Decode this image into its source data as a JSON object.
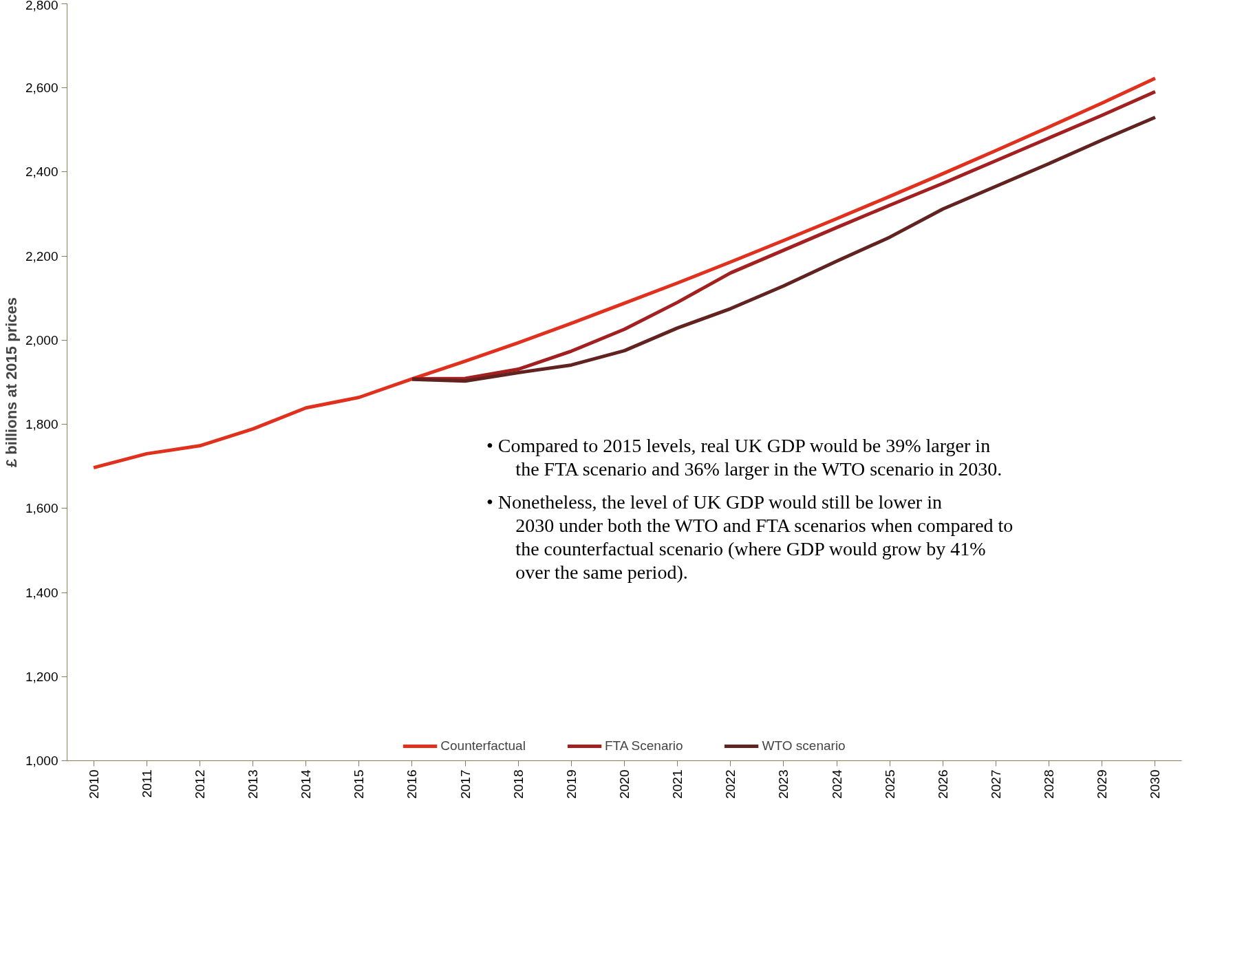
{
  "chart_data": {
    "type": "line",
    "ylabel": "£ billions at 2015 prices",
    "categories": [
      "2010",
      "2011",
      "2012",
      "2013",
      "2014",
      "2015",
      "2016",
      "2017",
      "2018",
      "2019",
      "2020",
      "2021",
      "2022",
      "2023",
      "2024",
      "2025",
      "2026",
      "2027",
      "2028",
      "2029",
      "2030"
    ],
    "series": [
      {
        "name": "Counterfactual",
        "color": "#e0301e",
        "values": [
          1697,
          1730,
          1749,
          1789,
          1839,
          1864,
          1908,
          1950,
          1994,
          2040,
          2088,
          2136,
          2186,
          2237,
          2289,
          2342,
          2396,
          2451,
          2507,
          2564,
          2623
        ]
      },
      {
        "name": "FTA Scenario",
        "color": "#a32020",
        "values": [
          null,
          null,
          null,
          null,
          null,
          null,
          1908,
          1909,
          1931,
          1974,
          2026,
          2090,
          2160,
          2214,
          2268,
          2321,
          2373,
          2427,
          2481,
          2535,
          2591
        ]
      },
      {
        "name": "WTO scenario",
        "color": "#602320",
        "values": [
          null,
          null,
          null,
          null,
          null,
          null,
          1907,
          1903,
          1923,
          1941,
          1975,
          2029,
          2075,
          2129,
          2188,
          2245,
          2312,
          2366,
          2420,
          2476,
          2530
        ]
      }
    ],
    "ylim": [
      1000,
      2800
    ],
    "yticks": [
      {
        "value": 1000,
        "label": "1,000"
      },
      {
        "value": 1200,
        "label": "1,200"
      },
      {
        "value": 1400,
        "label": "1,400"
      },
      {
        "value": 1600,
        "label": "1,600"
      },
      {
        "value": 1800,
        "label": "1,800"
      },
      {
        "value": 2000,
        "label": "2,000"
      },
      {
        "value": 2200,
        "label": "2,200"
      },
      {
        "value": 2400,
        "label": "2,400"
      },
      {
        "value": 2600,
        "label": "2,600"
      },
      {
        "value": 2800,
        "label": "2,800"
      }
    ],
    "grid": false,
    "legend": "bottom",
    "marker": "none",
    "line_style": "solid",
    "annotations": [
      "• Compared to 2015 levels, real UK GDP would be 39% larger in the FTA scenario and 36% larger in the WTO scenario in 2030.",
      "• Nonetheless, the level of UK GDP would still be lower in 2030 under both the WTO and FTA scenarios when compared to the counterfactual scenario (where GDP would grow by 41% over the same period)."
    ]
  }
}
